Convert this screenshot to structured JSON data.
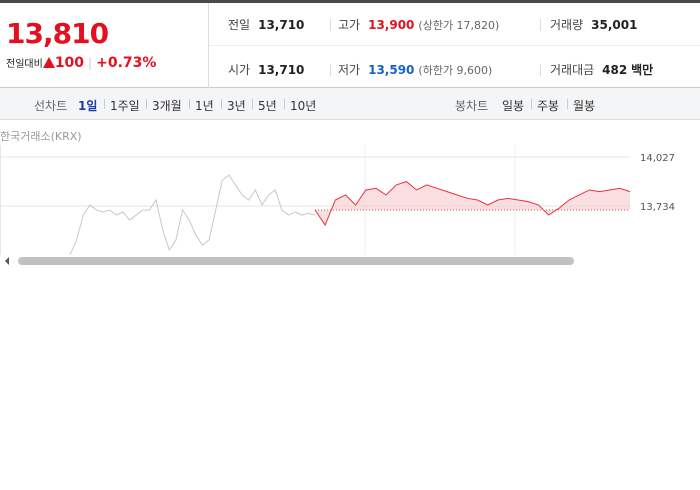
{
  "quote": {
    "price": "13,810",
    "change_label": "전일대비",
    "change": "100",
    "change_pct": "+0.73%"
  },
  "stats": [
    {
      "label": "전일",
      "value": "13,710"
    },
    {
      "label": "고가",
      "value": "13,900",
      "note": "(상한가 17,820)"
    },
    {
      "label": "거래량",
      "value": "35,001"
    },
    {
      "label": "시가",
      "value": "13,710"
    },
    {
      "label": "저가",
      "value": "13,590",
      "note": "(하한가 9,600)"
    },
    {
      "label": "거래대금",
      "value": "482",
      "unit": "백만"
    }
  ],
  "tabs": {
    "line_label": "선차트",
    "line": [
      "1일",
      "1주일",
      "3개월",
      "1년",
      "3년",
      "5년",
      "10년"
    ],
    "candle_label": "봉차트",
    "candle": [
      "일봉",
      "주봉",
      "월봉"
    ]
  },
  "chart_data": {
    "type": "line",
    "source": "한국거래소(KRX)",
    "ylim": [
      13423,
      14099
    ],
    "yticks": [
      {
        "value": 14027,
        "label": "14,027"
      },
      {
        "value": 13734,
        "label": "13,734"
      }
    ],
    "baseline": 13710,
    "series": [
      {
        "color": "#c8c8c8",
        "values": [
          13441,
          13531,
          13680,
          13740,
          13710,
          13698,
          13710,
          13680,
          13698,
          13650,
          13680,
          13710,
          13710,
          13770,
          13590,
          13471,
          13531,
          13710,
          13650,
          13560,
          13500,
          13531,
          13710,
          13889,
          13919,
          13860,
          13800,
          13770,
          13830,
          13740,
          13800,
          13830,
          13710,
          13680,
          13698,
          13680,
          13690,
          13680
        ]
      },
      {
        "color": "#f0303f",
        "values": [
          13710,
          13620,
          13770,
          13800,
          13740,
          13830,
          13840,
          13800,
          13860,
          13880,
          13830,
          13860,
          13840,
          13820,
          13800,
          13780,
          13770,
          13740,
          13770,
          13780,
          13770,
          13760,
          13740,
          13680,
          13720,
          13770,
          13800,
          13830,
          13820,
          13830,
          13840,
          13820
        ]
      }
    ]
  }
}
